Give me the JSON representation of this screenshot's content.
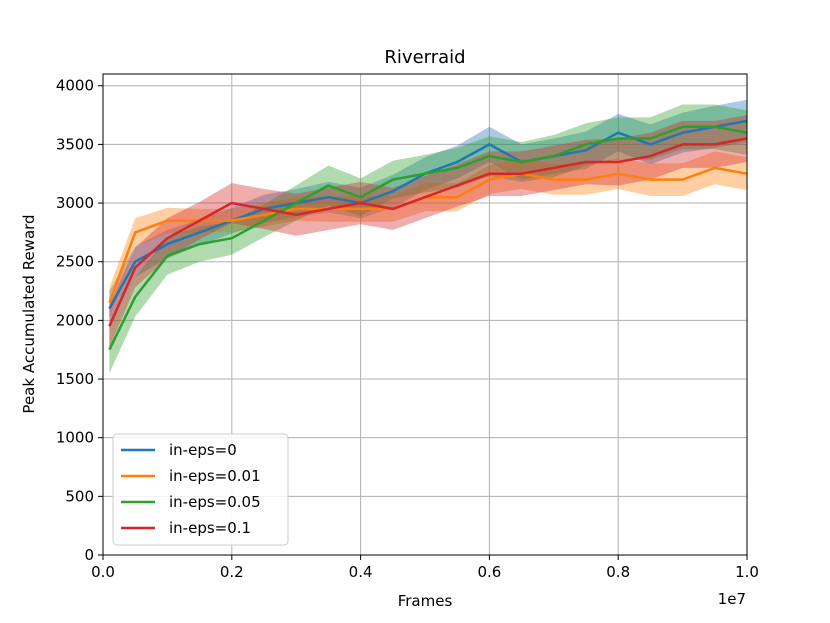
{
  "chart_data": {
    "type": "line",
    "title": "Riverraid",
    "xlabel": "Frames",
    "ylabel": "Peak Accumulated Reward",
    "x_offset_label": "1e7",
    "xlim": [
      0,
      1.0
    ],
    "ylim": [
      0,
      4100
    ],
    "xticks": [
      0.0,
      0.2,
      0.4,
      0.6,
      0.8,
      1.0
    ],
    "xtick_labels": [
      "0.0",
      "0.2",
      "0.4",
      "0.6",
      "0.8",
      "1.0"
    ],
    "yticks": [
      0,
      500,
      1000,
      1500,
      2000,
      2500,
      3000,
      3500,
      4000
    ],
    "ytick_labels": [
      "0",
      "500",
      "1000",
      "1500",
      "2000",
      "2500",
      "3000",
      "3500",
      "4000"
    ],
    "grid": true,
    "legend_position": "lower-left",
    "x": [
      0.01,
      0.05,
      0.1,
      0.15,
      0.2,
      0.25,
      0.3,
      0.35,
      0.4,
      0.45,
      0.5,
      0.55,
      0.6,
      0.65,
      0.7,
      0.75,
      0.8,
      0.85,
      0.9,
      0.95,
      1.0
    ],
    "series": [
      {
        "name": "in-eps=0",
        "color": "#1f77b4",
        "values": [
          2100,
          2500,
          2650,
          2750,
          2850,
          2950,
          3000,
          3050,
          3000,
          3100,
          3250,
          3350,
          3500,
          3350,
          3400,
          3450,
          3600,
          3500,
          3600,
          3650,
          3700
        ],
        "band": [
          150,
          130,
          120,
          110,
          110,
          120,
          120,
          130,
          130,
          140,
          140,
          140,
          150,
          150,
          150,
          160,
          160,
          170,
          170,
          180,
          180
        ]
      },
      {
        "name": "in-eps=0.01",
        "color": "#ff7f0e",
        "values": [
          2150,
          2750,
          2850,
          2850,
          2850,
          2900,
          2950,
          2950,
          2950,
          2950,
          3050,
          3050,
          3200,
          3250,
          3200,
          3200,
          3250,
          3200,
          3200,
          3300,
          3250
        ],
        "band": [
          130,
          120,
          110,
          100,
          100,
          100,
          100,
          110,
          110,
          110,
          120,
          120,
          120,
          130,
          130,
          130,
          130,
          140,
          140,
          140,
          140
        ]
      },
      {
        "name": "in-eps=0.05",
        "color": "#2ca02c",
        "values": [
          1750,
          2200,
          2550,
          2650,
          2700,
          2850,
          3000,
          3150,
          3050,
          3200,
          3250,
          3300,
          3400,
          3350,
          3400,
          3500,
          3550,
          3550,
          3650,
          3650,
          3600
        ],
        "band": [
          200,
          170,
          160,
          150,
          140,
          140,
          150,
          170,
          160,
          160,
          160,
          170,
          170,
          170,
          180,
          180,
          180,
          180,
          190,
          190,
          190
        ]
      },
      {
        "name": "in-eps=0.1",
        "color": "#d62728",
        "values": [
          1950,
          2450,
          2700,
          2850,
          3000,
          2950,
          2900,
          2950,
          3000,
          2950,
          3050,
          3150,
          3250,
          3250,
          3300,
          3350,
          3350,
          3400,
          3500,
          3500,
          3550
        ],
        "band": [
          180,
          170,
          170,
          160,
          170,
          170,
          180,
          180,
          180,
          180,
          180,
          180,
          190,
          190,
          190,
          190,
          200,
          200,
          200,
          200,
          200
        ]
      }
    ]
  }
}
